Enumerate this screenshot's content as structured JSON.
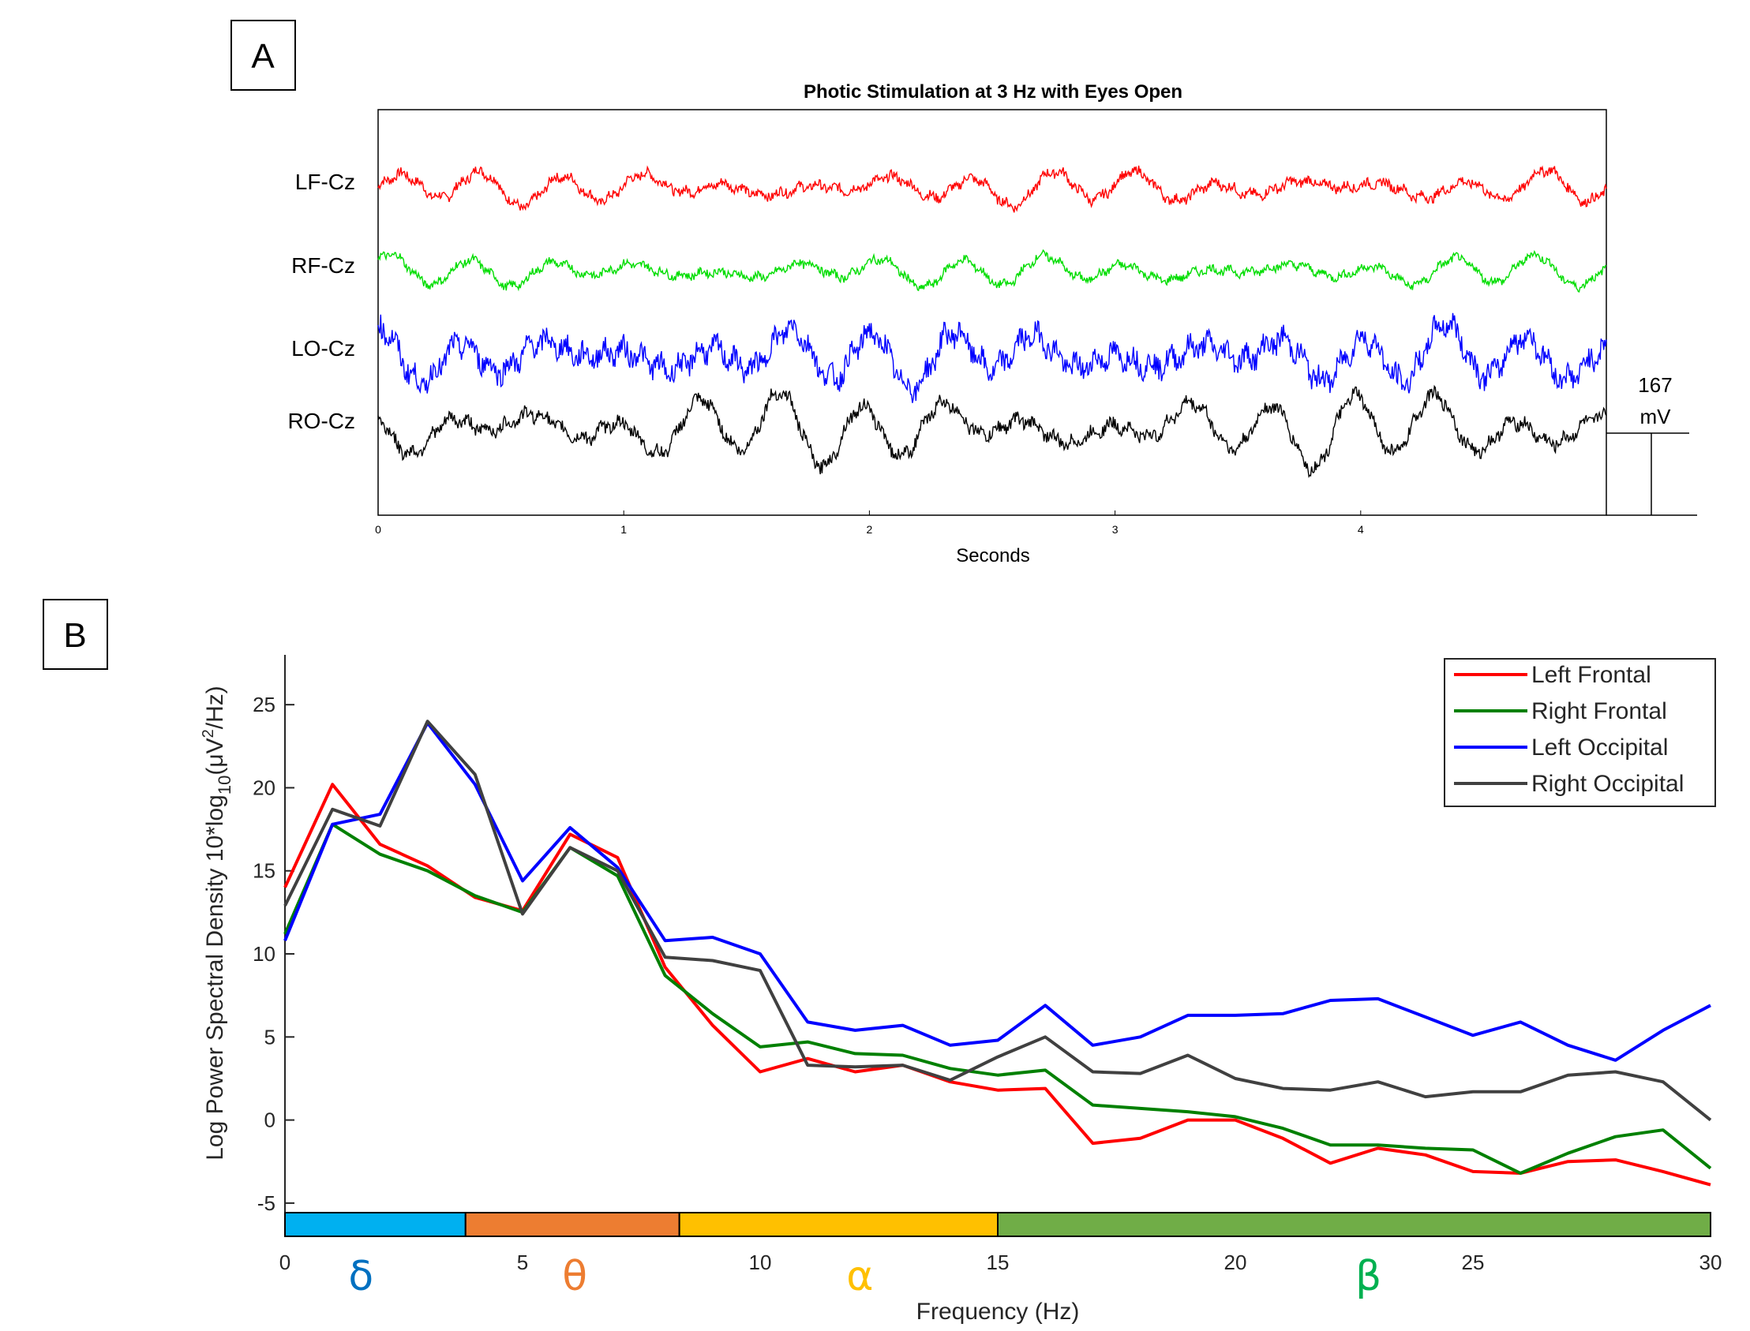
{
  "panel_a_label": "A",
  "panel_b_label": "B",
  "chart_data": [
    {
      "type": "line",
      "title": "Photic Stimulation at 3 Hz with Eyes Open",
      "xlabel": "Seconds",
      "ylabel": "",
      "xlim": [
        0,
        5
      ],
      "xticks": [
        "0",
        "1",
        "2",
        "3",
        "4"
      ],
      "scale_bar": {
        "value": "167",
        "unit": "mV"
      },
      "series": [
        {
          "name": "LF-Cz",
          "color": "#ff0000"
        },
        {
          "name": "RF-Cz",
          "color": "#00dd00"
        },
        {
          "name": "LO-Cz",
          "color": "#0000ff"
        },
        {
          "name": "RO-Cz",
          "color": "#000000"
        }
      ]
    },
    {
      "type": "line",
      "title": "",
      "xlabel": "Frequency (Hz)",
      "ylabel": "Log Power Spectral Density 10*log",
      "ylabel_sub": "10",
      "ylabel_tail": "(μV",
      "ylabel_sup": "2",
      "ylabel_end": "/Hz)",
      "xlim": [
        0,
        30
      ],
      "ylim": [
        -7,
        28
      ],
      "xticks": [
        "0",
        "5",
        "10",
        "15",
        "20",
        "25",
        "30"
      ],
      "yticks": [
        "-5",
        "0",
        "5",
        "10",
        "15",
        "20",
        "25"
      ],
      "x": [
        0,
        1,
        2,
        3,
        4,
        5,
        6,
        7,
        8,
        9,
        10,
        11,
        12,
        13,
        14,
        15,
        16,
        17,
        18,
        19,
        20,
        21,
        22,
        23,
        24,
        25,
        26,
        27,
        28,
        29,
        30
      ],
      "series": [
        {
          "name": "Left Frontal",
          "color": "#ff0000",
          "values": [
            14,
            20.2,
            16.6,
            15.3,
            13.4,
            12.6,
            17.2,
            15.8,
            9.2,
            5.7,
            2.9,
            3.7,
            2.9,
            3.3,
            2.3,
            1.8,
            1.9,
            -1.4,
            -1.1,
            0.0,
            0.0,
            -1.1,
            -2.6,
            -1.7,
            -2.1,
            -3.1,
            -3.2,
            -2.5,
            -2.4,
            -3.1,
            -3.9
          ]
        },
        {
          "name": "Right Frontal",
          "color": "#008000",
          "values": [
            11.2,
            17.8,
            16.0,
            15.0,
            13.5,
            12.5,
            16.4,
            14.7,
            8.7,
            6.4,
            4.4,
            4.7,
            4.0,
            3.9,
            3.1,
            2.7,
            3.0,
            0.9,
            0.7,
            0.5,
            0.2,
            -0.5,
            -1.5,
            -1.5,
            -1.7,
            -1.8,
            -3.2,
            -2.0,
            -1.0,
            -0.6,
            -2.9
          ]
        },
        {
          "name": "Left Occipital",
          "color": "#0000ff",
          "values": [
            10.8,
            17.8,
            18.4,
            23.9,
            20.2,
            14.4,
            17.6,
            15.2,
            10.8,
            11.0,
            10.0,
            5.9,
            5.4,
            5.7,
            4.5,
            4.8,
            6.9,
            4.5,
            5.0,
            6.3,
            6.3,
            6.4,
            7.2,
            7.3,
            6.2,
            5.1,
            5.9,
            4.5,
            3.6,
            5.4,
            6.9
          ]
        },
        {
          "name": "Right Occipital",
          "color": "#404040",
          "values": [
            12.9,
            18.7,
            17.7,
            24.0,
            20.8,
            12.4,
            16.4,
            15.0,
            9.8,
            9.6,
            9.0,
            3.3,
            3.2,
            3.3,
            2.4,
            3.8,
            5.0,
            2.9,
            2.8,
            3.9,
            2.5,
            1.9,
            1.8,
            2.3,
            1.4,
            1.7,
            1.7,
            2.7,
            2.9,
            2.3,
            0.0
          ]
        }
      ],
      "bands": [
        {
          "symbol": "δ",
          "from": 0,
          "to": 3.8,
          "fill": "#00b0f0",
          "text_color": "#0070c0"
        },
        {
          "symbol": "θ",
          "from": 3.8,
          "to": 8.3,
          "fill": "#ed7d31",
          "text_color": "#ed7d31"
        },
        {
          "symbol": "α",
          "from": 8.3,
          "to": 15,
          "fill": "#ffc000",
          "text_color": "#ffc000"
        },
        {
          "symbol": "β",
          "from": 15,
          "to": 30,
          "fill": "#70ad47",
          "text_color": "#00b050"
        }
      ],
      "legend": "top-right"
    }
  ]
}
